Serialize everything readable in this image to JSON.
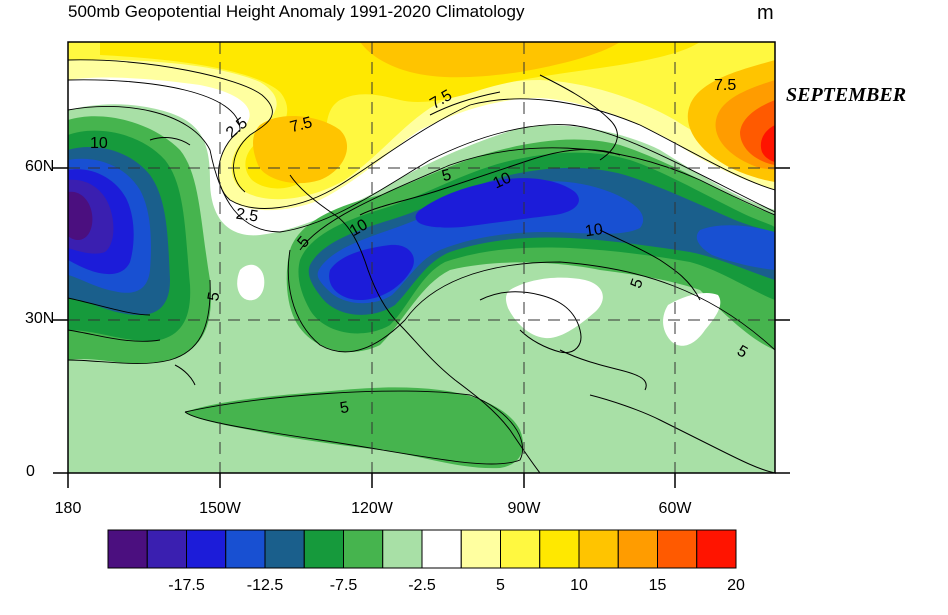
{
  "title": "500mb Geopotential Height Anomaly  1991-2020 Climatology",
  "units": "m",
  "month": "SEPTEMBER",
  "lat_labels": [
    "60N",
    "30N",
    "0"
  ],
  "lon_labels": [
    "180",
    "150W",
    "120W",
    "90W",
    "60W"
  ],
  "contour_labels": [
    "10",
    "2.5",
    "7.5",
    "7.5",
    "7.5",
    "2.5",
    "5",
    "10",
    "5",
    "10",
    "10",
    "5",
    "5",
    "5",
    "5"
  ],
  "colorbar": {
    "colors": [
      "#4b0f7f",
      "#3a1fb0",
      "#1c1cd9",
      "#1850d2",
      "#1a5f8c",
      "#169a3c",
      "#46b44e",
      "#a8e0a6",
      "#ffffff",
      "#ffffa0",
      "#fff840",
      "#ffe800",
      "#ffc400",
      "#ff9c00",
      "#ff5a00",
      "#ff1400"
    ],
    "tick_labels": [
      "-17.5",
      "-12.5",
      "-7.5",
      "-2.5",
      "5",
      "10",
      "15",
      "20"
    ]
  }
}
